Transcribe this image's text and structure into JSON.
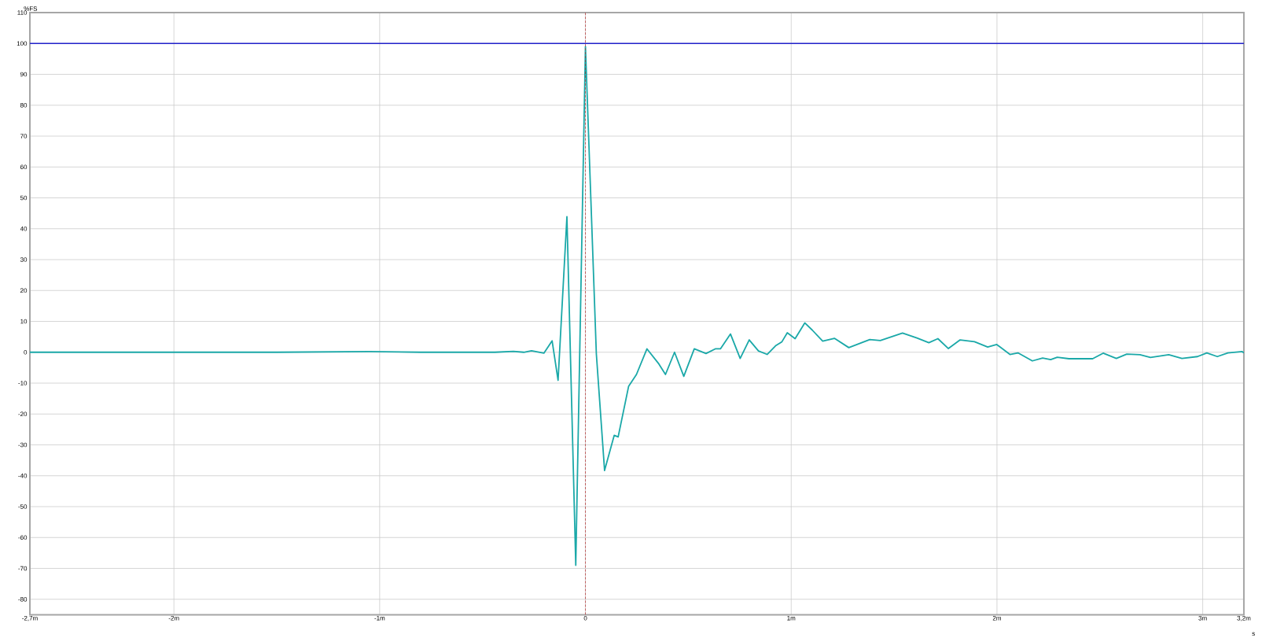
{
  "chart_data": {
    "type": "line",
    "xlabel": "s",
    "ylabel": "%FS",
    "xlim": [
      -2.7,
      3.2
    ],
    "ylim": [
      -85,
      110
    ],
    "xticks": [
      {
        "value": -2.7,
        "label": "-2,7m"
      },
      {
        "value": -2,
        "label": "-2m"
      },
      {
        "value": -1,
        "label": "-1m"
      },
      0,
      {
        "value": 1,
        "label": "1m"
      },
      {
        "value": 2,
        "label": "2m"
      },
      {
        "value": 3,
        "label": "3m"
      },
      {
        "value": 3.2,
        "label": "3,2m"
      }
    ],
    "yticks": [
      -80,
      -70,
      -60,
      -50,
      -40,
      -30,
      -20,
      -10,
      0,
      10,
      20,
      30,
      40,
      50,
      60,
      70,
      80,
      90,
      100,
      110
    ],
    "grid": true,
    "ref_lines": [
      {
        "axis": "y",
        "value": 100,
        "color": "#2222cc",
        "line_style": "solid"
      },
      {
        "axis": "x",
        "value": 0,
        "color": "#b22222",
        "line_style": "dashed"
      }
    ],
    "series": [
      {
        "color": "#1aa8a8",
        "x": [
          -2.7,
          -2.0,
          -1.5,
          -1.05,
          -0.8,
          -0.44,
          -0.35,
          -0.3,
          -0.262,
          -0.202,
          -0.162,
          -0.133,
          -0.09,
          -0.047,
          0.0,
          0.053,
          0.093,
          0.14,
          0.159,
          0.21,
          0.248,
          0.299,
          0.357,
          0.389,
          0.433,
          0.478,
          0.529,
          0.586,
          0.631,
          0.656,
          0.705,
          0.752,
          0.796,
          0.841,
          0.883,
          0.924,
          0.955,
          0.981,
          1.019,
          1.066,
          1.102,
          1.153,
          1.21,
          1.28,
          1.382,
          1.433,
          1.541,
          1.611,
          1.669,
          1.713,
          1.764,
          1.821,
          1.891,
          1.955,
          1.999,
          2.063,
          2.102,
          2.172,
          2.222,
          2.261,
          2.293,
          2.35,
          2.465,
          2.516,
          2.58,
          2.631,
          2.695,
          2.746,
          2.835,
          2.899,
          2.975,
          3.02,
          3.071,
          3.122,
          3.192,
          3.2
        ],
        "values": [
          0,
          0,
          0,
          0.2,
          0,
          0,
          0.3,
          0,
          0.5,
          -0.3,
          3.7,
          -9.1,
          43.9,
          -69.0,
          99,
          -0.5,
          -38.3,
          -26.9,
          -27.4,
          -11.0,
          -7.2,
          1.1,
          -3.8,
          -7.2,
          0.0,
          -7.8,
          1.1,
          -0.4,
          1.1,
          1.1,
          5.9,
          -2.0,
          4.0,
          0.4,
          -0.7,
          2.1,
          3.4,
          6.3,
          4.4,
          9.5,
          7.2,
          3.6,
          4.5,
          1.5,
          4.1,
          3.8,
          6.2,
          4.6,
          3.1,
          4.4,
          1.2,
          4.0,
          3.4,
          1.7,
          2.5,
          -0.7,
          -0.2,
          -2.8,
          -1.9,
          -2.4,
          -1.6,
          -2.1,
          -2.1,
          -0.3,
          -2.0,
          -0.6,
          -0.8,
          -1.7,
          -0.8,
          -2.0,
          -1.4,
          -0.2,
          -1.4,
          -0.2,
          0.2,
          -0.2
        ]
      }
    ]
  }
}
